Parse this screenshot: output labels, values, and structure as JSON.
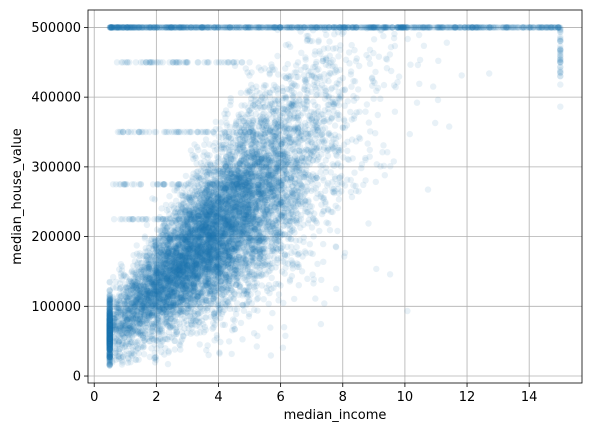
{
  "chart_data": {
    "type": "scatter",
    "title": "",
    "xlabel": "median_income",
    "ylabel": "median_house_value",
    "xlim": [
      -0.2,
      15.7
    ],
    "ylim": [
      -10000,
      525000
    ],
    "xticks": [
      0,
      2,
      4,
      6,
      8,
      10,
      12,
      14
    ],
    "yticks": [
      0,
      100000,
      200000,
      300000,
      400000,
      500000
    ],
    "grid": true,
    "legend": "none",
    "color": "#1f77b4",
    "alpha": 0.1,
    "approx_point_count": 20640,
    "density_points": [
      [
        1.0,
        50000
      ],
      [
        1.5,
        60000
      ],
      [
        2.0,
        80000
      ],
      [
        2.5,
        100000
      ],
      [
        3.0,
        120000
      ],
      [
        3.5,
        150000
      ],
      [
        4.0,
        170000
      ],
      [
        4.5,
        200000
      ],
      [
        5.0,
        220000
      ],
      [
        5.5,
        250000
      ],
      [
        6.0,
        280000
      ],
      [
        7.0,
        320000
      ],
      [
        8.0,
        370000
      ],
      [
        9.0,
        420000
      ],
      [
        10.0,
        450000
      ],
      [
        15.0,
        500001
      ],
      [
        12.0,
        500001
      ],
      [
        8.0,
        500001
      ],
      [
        5.0,
        500001
      ],
      [
        3.0,
        500001
      ]
    ],
    "cap_value": 500001,
    "cap_income_max": 15.0
  }
}
